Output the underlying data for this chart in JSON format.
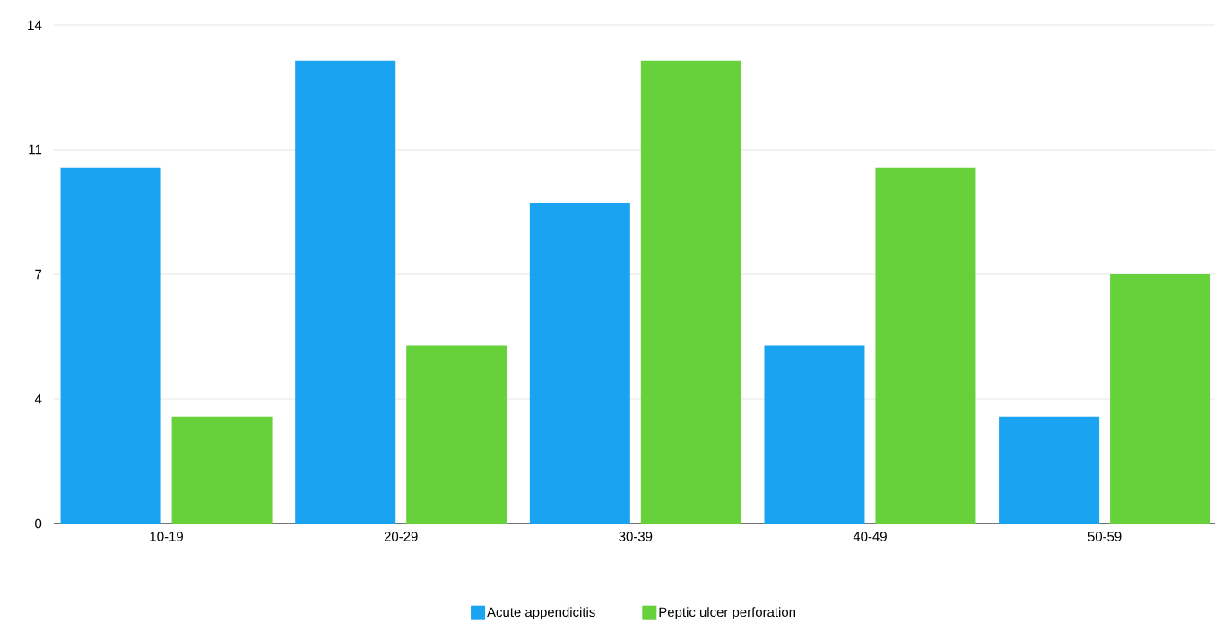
{
  "chart_data": {
    "type": "bar",
    "categories": [
      "10-19",
      "20-29",
      "30-39",
      "40-49",
      "50-59"
    ],
    "series": [
      {
        "name": "Acute appendicitis",
        "color": "#1aa3f0",
        "values": [
          10,
          13,
          9,
          5,
          3
        ]
      },
      {
        "name": "Peptic ulcer perforation",
        "color": "#66d13a",
        "values": [
          3,
          5,
          13,
          10,
          7
        ]
      }
    ],
    "ylim": [
      0,
      14
    ],
    "yticks": [
      0,
      {
        "value": 3.5,
        "label": "4"
      },
      7,
      {
        "value": 10.5,
        "label": "11"
      },
      14
    ],
    "grid": "y",
    "legend": "bottom"
  }
}
